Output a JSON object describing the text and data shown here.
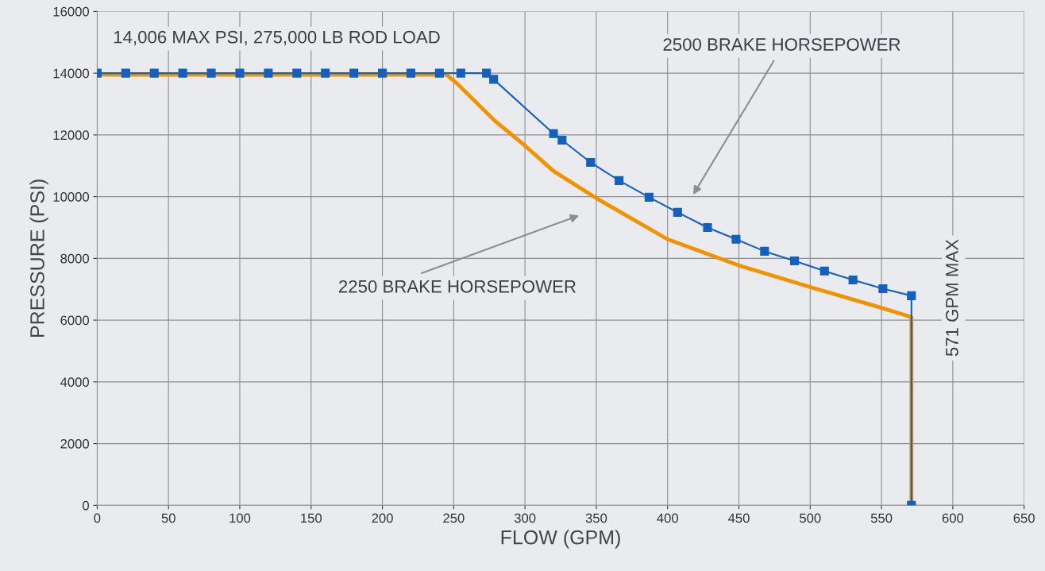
{
  "chart_data": {
    "type": "line",
    "xlabel": "FLOW (GPM)",
    "ylabel": "PRESSURE (PSI)",
    "xlim": [
      0,
      650
    ],
    "xticks": [
      0,
      50,
      100,
      150,
      200,
      250,
      300,
      350,
      400,
      450,
      500,
      550,
      600,
      650
    ],
    "ylim": [
      0,
      16000
    ],
    "yticks": [
      0,
      2000,
      4000,
      6000,
      8000,
      10000,
      12000,
      14000,
      16000
    ],
    "grid": true,
    "series": [
      {
        "color": "#f39200",
        "marker": "none",
        "x": [
          0,
          245,
          252,
          279,
          300,
          320,
          350,
          400,
          450,
          500,
          550,
          571,
          571
        ],
        "values": [
          13950,
          13950,
          13680,
          12450,
          11650,
          10830,
          9950,
          8620,
          7770,
          7070,
          6400,
          6100,
          0
        ]
      },
      {
        "color": "#1560bd",
        "marker": "square",
        "x": [
          0,
          20,
          40,
          60,
          80,
          100,
          120,
          140,
          160,
          180,
          200,
          220,
          240,
          255,
          273,
          278,
          320,
          326,
          346,
          366,
          387,
          407,
          428,
          448,
          468,
          489,
          510,
          530,
          551,
          571,
          571
        ],
        "values": [
          14000,
          14000,
          14000,
          14000,
          14000,
          14000,
          14000,
          14000,
          14000,
          14000,
          14000,
          14000,
          14000,
          14000,
          14000,
          13800,
          12040,
          11830,
          11110,
          10520,
          9980,
          9490,
          9000,
          8620,
          8230,
          7920,
          7590,
          7300,
          7020,
          6790,
          0
        ]
      }
    ],
    "annotations": [
      "14,006 MAX PSI, 275,000 LB ROD LOAD",
      "2500 BRAKE HORSEPOWER",
      "2250 BRAKE HORSEPOWER",
      "571 GPM MAX"
    ]
  }
}
